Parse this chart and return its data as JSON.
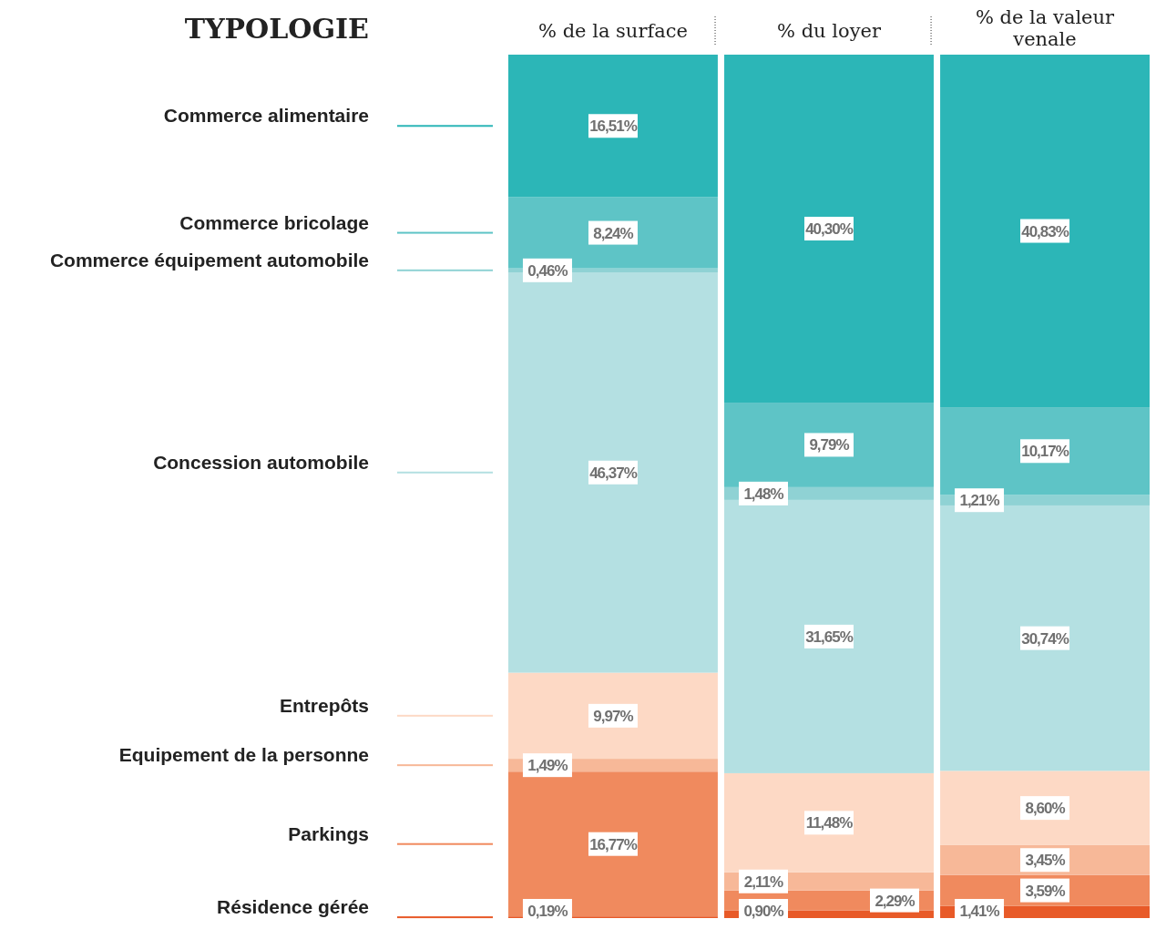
{
  "chart_data": {
    "type": "bar",
    "stacked": true,
    "legend": "left",
    "legend_title": "TYPOLOGIE",
    "categories": [
      "% de la surface",
      "% du loyer",
      "% de la valeur venale"
    ],
    "series": [
      {
        "name": "Résidence gérée",
        "color": "#e85a28",
        "values": [
          0.19,
          0.9,
          1.41
        ],
        "value_labels": [
          "0,19%",
          "0,90%",
          "1,41%"
        ]
      },
      {
        "name": "Parkings",
        "color": "#f08a5e",
        "values": [
          16.77,
          2.29,
          3.59
        ],
        "value_labels": [
          "16,77%",
          "2,29%",
          "3,59%"
        ]
      },
      {
        "name": "Equipement de la personne",
        "color": "#f7b898",
        "values": [
          1.49,
          2.11,
          3.45
        ],
        "value_labels": [
          "1,49%",
          "2,11%",
          "3,45%"
        ]
      },
      {
        "name": "Entrepôts",
        "color": "#fdd9c5",
        "values": [
          9.97,
          11.48,
          8.6
        ],
        "value_labels": [
          "9,97%",
          "11,48%",
          "8,60%"
        ]
      },
      {
        "name": "Concession automobile",
        "color": "#b4e0e2",
        "values": [
          46.37,
          31.65,
          30.74
        ],
        "value_labels": [
          "46,37%",
          "31,65%",
          "30,74%"
        ]
      },
      {
        "name": "Commerce équipement automobile",
        "color": "#8fd2d4",
        "values": [
          0.46,
          1.48,
          1.21
        ],
        "value_labels": [
          "0,46%",
          "1,48%",
          "1,21%"
        ]
      },
      {
        "name": "Commerce bricolage",
        "color": "#5ec4c6",
        "values": [
          8.24,
          9.79,
          10.17
        ],
        "value_labels": [
          "8,24%",
          "9,79%",
          "10,17%"
        ]
      },
      {
        "name": "Commerce alimentaire",
        "color": "#2cb6b7",
        "values": [
          16.51,
          40.3,
          40.83
        ],
        "value_labels": [
          "16,51%",
          "40,30%",
          "40,83%"
        ]
      }
    ]
  }
}
